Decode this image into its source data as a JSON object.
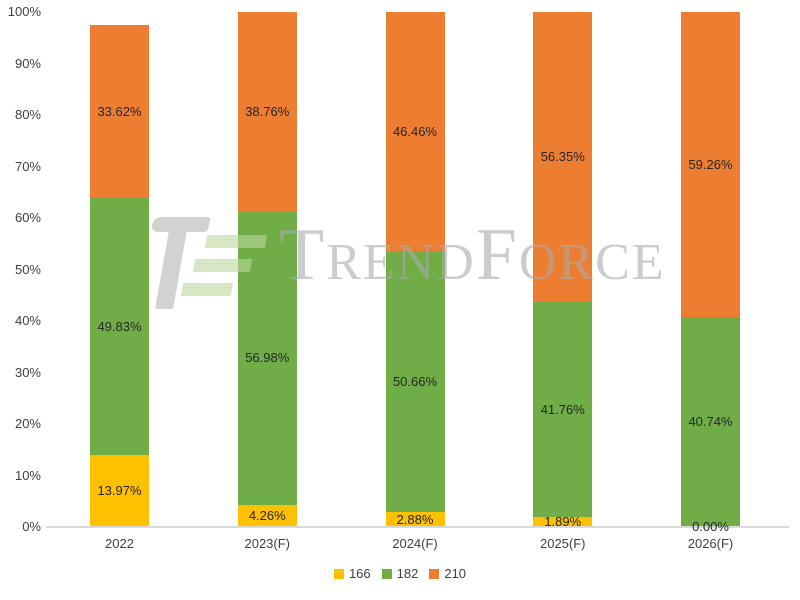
{
  "chart_data": {
    "type": "bar",
    "stacking": "percent-stacked",
    "title": "",
    "xlabel": "",
    "ylabel": "",
    "categories": [
      "2022",
      "2023(F)",
      "2024(F)",
      "2025(F)",
      "2026(F)"
    ],
    "series": [
      {
        "name": "166",
        "color": "#FFC000",
        "values": [
          13.97,
          4.26,
          2.88,
          1.89,
          0.0
        ]
      },
      {
        "name": "182",
        "color": "#70AD47",
        "values": [
          49.83,
          56.98,
          50.66,
          41.76,
          40.74
        ]
      },
      {
        "name": "210",
        "color": "#ED7D31",
        "values": [
          33.62,
          38.76,
          46.46,
          56.35,
          59.26
        ]
      }
    ],
    "data_labels": [
      [
        "13.97%",
        "4.26%",
        "2.88%",
        "1.89%",
        "0.00%"
      ],
      [
        "49.83%",
        "56.98%",
        "50.66%",
        "41.76%",
        "40.74%"
      ],
      [
        "33.62%",
        "38.76%",
        "46.46%",
        "56.35%",
        "59.26%"
      ]
    ],
    "y_axis": {
      "min": 0,
      "max": 100,
      "step": 10,
      "tick_labels": [
        "0%",
        "10%",
        "20%",
        "30%",
        "40%",
        "50%",
        "60%",
        "70%",
        "80%",
        "90%",
        "100%"
      ]
    },
    "legend": {
      "position": "bottom",
      "items": [
        "166",
        "182",
        "210"
      ]
    },
    "gridlines": false,
    "axis_line_color": "#d9d9d9",
    "watermark": {
      "text": "TrendForce"
    }
  }
}
